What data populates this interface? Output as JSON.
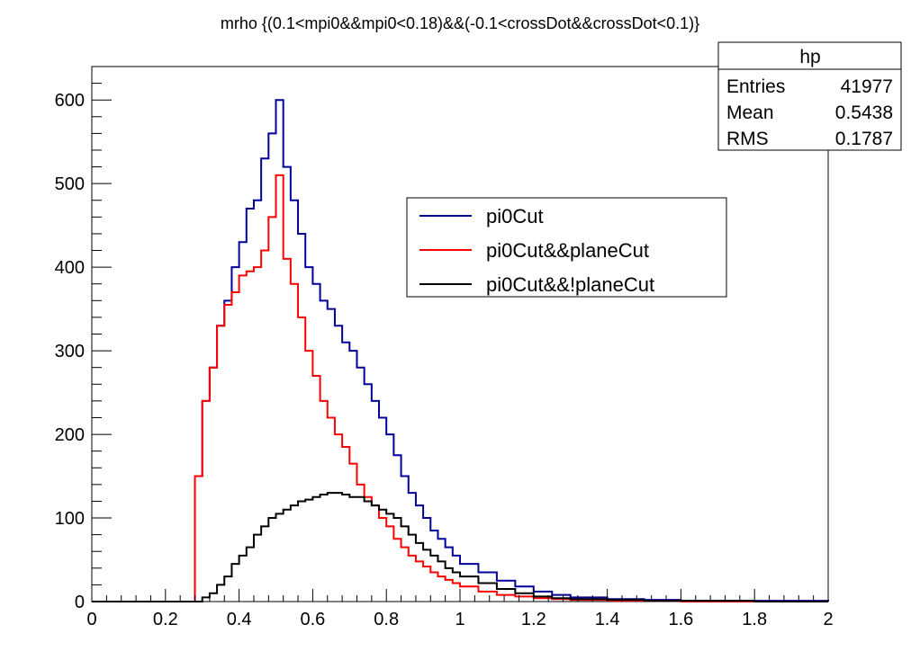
{
  "chart_data": {
    "type": "line",
    "title": "mrho {(0.1<mpi0&&mpi0<0.18)&&(-0.1<crossDot&&crossDot<0.1)}",
    "xlabel": "",
    "ylabel": "",
    "xlim": [
      0,
      2
    ],
    "ylim": [
      0,
      640
    ],
    "grid": false,
    "legend_position": "center-right",
    "x_ticks": [
      "0",
      "0.2",
      "0.4",
      "0.6",
      "0.8",
      "1",
      "1.2",
      "1.4",
      "1.6",
      "1.8",
      "2"
    ],
    "y_ticks": [
      "0",
      "100",
      "200",
      "300",
      "400",
      "500",
      "600"
    ],
    "x": [
      0.28,
      0.3,
      0.32,
      0.34,
      0.36,
      0.38,
      0.4,
      0.42,
      0.44,
      0.46,
      0.48,
      0.5,
      0.52,
      0.54,
      0.56,
      0.58,
      0.6,
      0.62,
      0.64,
      0.66,
      0.68,
      0.7,
      0.72,
      0.74,
      0.76,
      0.78,
      0.8,
      0.82,
      0.84,
      0.86,
      0.88,
      0.9,
      0.92,
      0.94,
      0.96,
      0.98,
      1.0,
      1.05,
      1.1,
      1.15,
      1.2,
      1.25,
      1.3,
      1.4,
      1.5,
      1.6,
      1.8,
      2.0
    ],
    "series": [
      {
        "name": "pi0Cut",
        "color": "#000099",
        "values": [
          150,
          240,
          280,
          330,
          360,
          400,
          430,
          470,
          480,
          530,
          560,
          600,
          520,
          480,
          440,
          400,
          380,
          360,
          350,
          330,
          310,
          300,
          280,
          260,
          240,
          220,
          200,
          175,
          150,
          130,
          115,
          100,
          85,
          75,
          65,
          55,
          45,
          35,
          25,
          18,
          12,
          8,
          5,
          3,
          2,
          1,
          1,
          0
        ]
      },
      {
        "name": "pi0Cut&&planeCut",
        "color": "#ff0000",
        "values": [
          150,
          240,
          280,
          330,
          355,
          370,
          390,
          395,
          400,
          420,
          460,
          510,
          410,
          380,
          340,
          300,
          270,
          240,
          220,
          200,
          185,
          165,
          140,
          125,
          115,
          100,
          90,
          75,
          65,
          55,
          48,
          42,
          35,
          30,
          26,
          22,
          18,
          12,
          8,
          6,
          4,
          3,
          2,
          1,
          1,
          0,
          0,
          0
        ]
      },
      {
        "name": "pi0Cut&&!planeCut",
        "color": "#000000",
        "values": [
          0,
          5,
          10,
          20,
          30,
          45,
          55,
          65,
          80,
          90,
          100,
          105,
          110,
          115,
          120,
          122,
          125,
          128,
          130,
          130,
          128,
          125,
          125,
          120,
          115,
          110,
          105,
          100,
          90,
          80,
          70,
          62,
          55,
          48,
          40,
          35,
          30,
          22,
          15,
          10,
          6,
          4,
          3,
          2,
          1,
          1,
          0,
          0
        ]
      }
    ],
    "stats_box": {
      "title": "hp",
      "rows": [
        {
          "label": "Entries",
          "value": "41977"
        },
        {
          "label": "Mean",
          "value": "0.5438"
        },
        {
          "label": "RMS",
          "value": "0.1787"
        }
      ]
    }
  }
}
